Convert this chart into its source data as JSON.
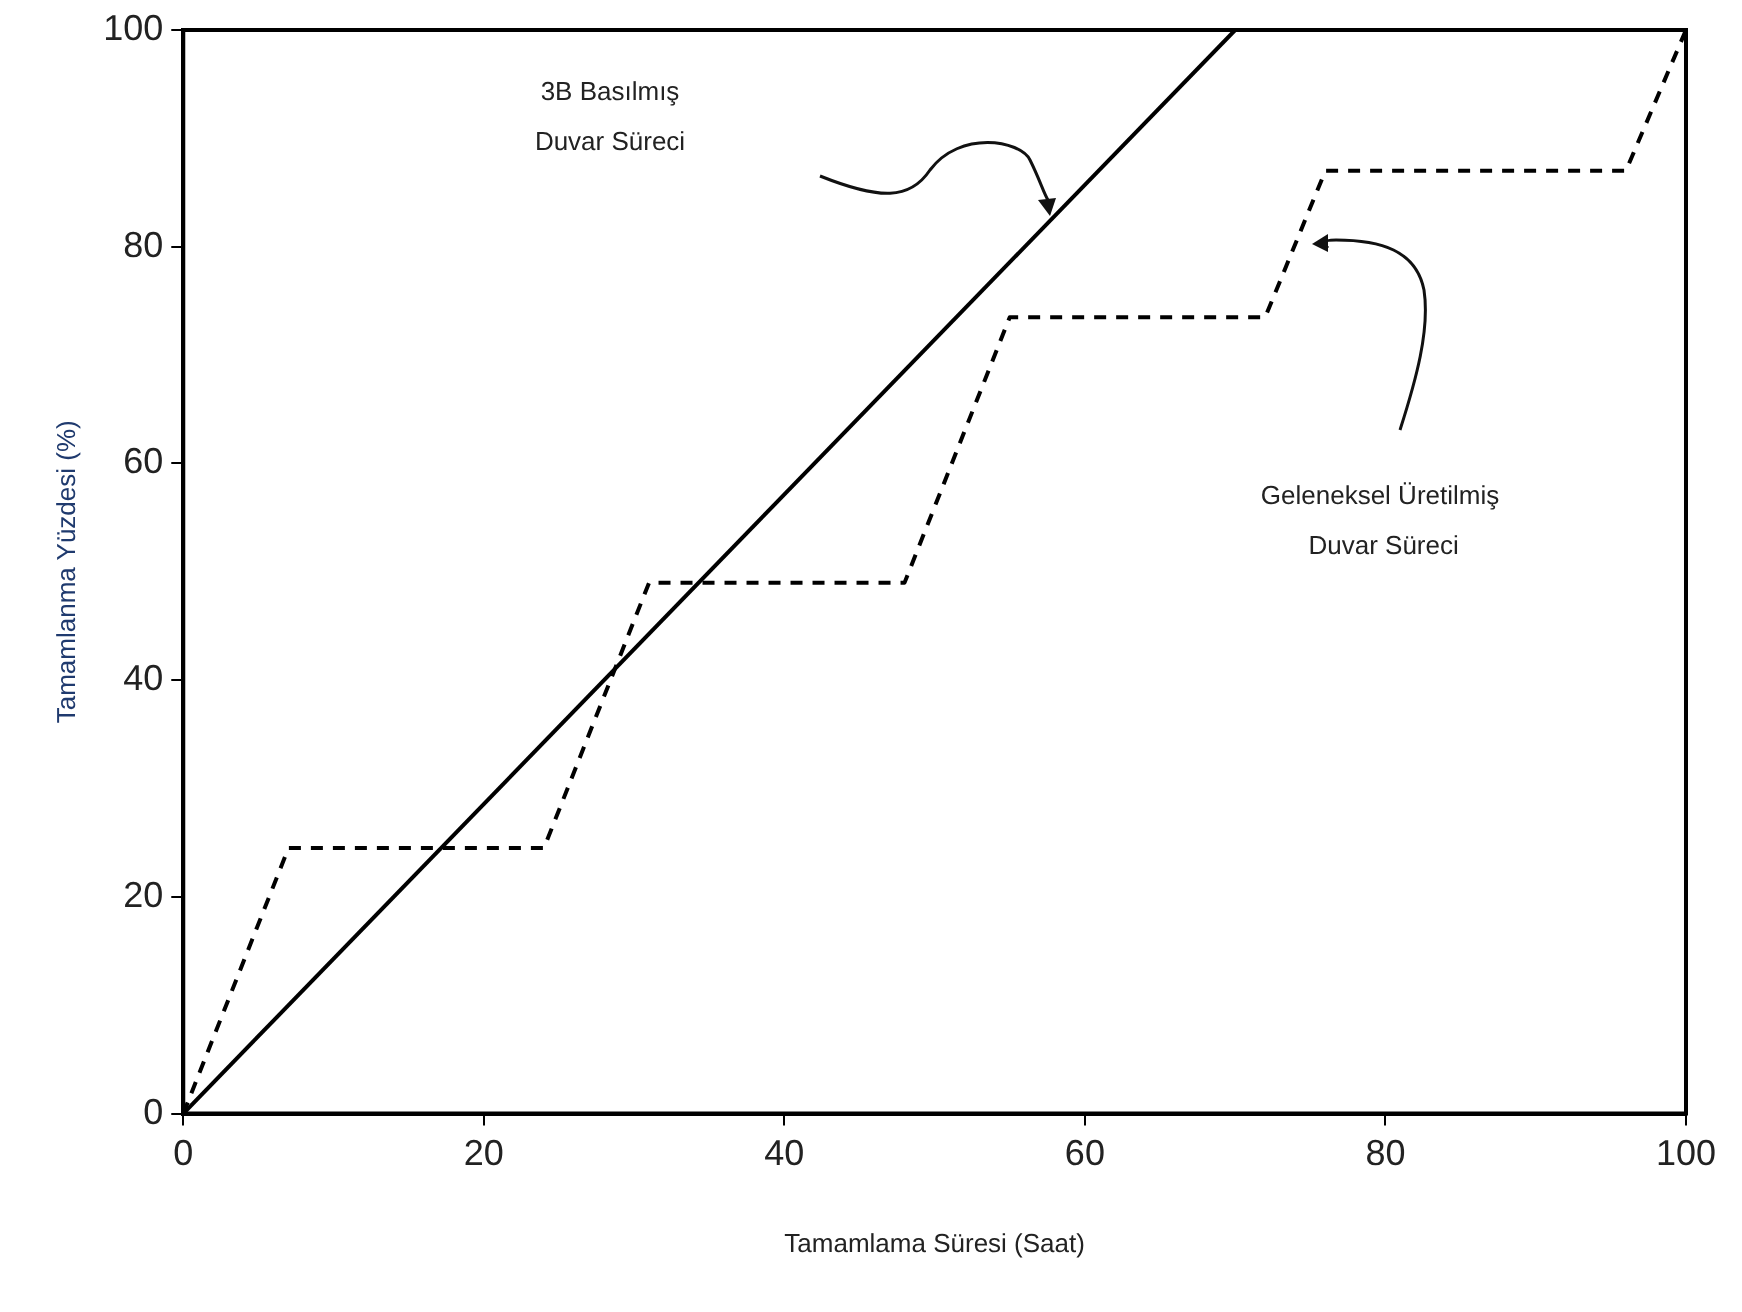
{
  "chart_data": {
    "type": "line",
    "xlabel": "Tamamlama Süresi (Saat)",
    "ylabel": "Tamamlanma Yüzdesi (%)",
    "xlim": [
      0,
      100
    ],
    "xticks": [
      0,
      20,
      40,
      60,
      80,
      100
    ],
    "ylim": [
      0,
      100
    ],
    "yticks": [
      0,
      20,
      40,
      60,
      80,
      100
    ],
    "grid": false,
    "legend": false,
    "marker": "none",
    "series": [
      {
        "color": "#000000",
        "line_style": "solid",
        "x": [
          0,
          70
        ],
        "values": [
          0,
          100
        ]
      },
      {
        "color": "#000000",
        "line_style": "dashed",
        "x": [
          0,
          7,
          24,
          31,
          48,
          55,
          72,
          76,
          96,
          100
        ],
        "values": [
          0,
          24.5,
          24.5,
          49,
          49,
          73.5,
          73.5,
          87,
          87,
          100
        ]
      }
    ],
    "annotations": [
      "3B Basılmış\nDuvar Süreci",
      "Geleneksel Üretilmiş\n Duvar Süreci"
    ]
  }
}
